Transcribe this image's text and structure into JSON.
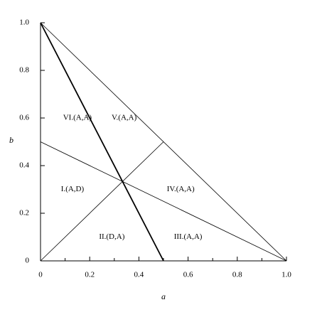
{
  "chart_data": {
    "type": "line",
    "xlabel": "a",
    "ylabel": "b",
    "xlim": [
      0,
      1
    ],
    "ylim": [
      0,
      1
    ],
    "xticks": [
      0,
      0.2,
      0.4,
      0.6,
      0.8,
      {
        "value": 1,
        "label": "1.0"
      }
    ],
    "minor_xticks": [
      0.1,
      0.3,
      0.5,
      0.7,
      0.9
    ],
    "yticks": [
      0,
      0.2,
      0.4,
      0.6,
      0.8,
      {
        "value": 1,
        "label": "1.0"
      }
    ],
    "series": [
      {
        "color": "#000000",
        "line_width": 0.8,
        "x": [
          0,
          1
        ],
        "values": [
          1,
          0
        ]
      },
      {
        "color": "#000000",
        "line_width": 1.8,
        "x": [
          0,
          0.5
        ],
        "values": [
          1,
          0
        ]
      },
      {
        "color": "#000000",
        "line_width": 0.8,
        "x": [
          0,
          1
        ],
        "values": [
          0.5,
          0
        ]
      },
      {
        "color": "#000000",
        "line_width": 0.8,
        "x": [
          0,
          0.5
        ],
        "values": [
          0,
          0.5
        ]
      }
    ],
    "annotations": [
      {
        "text": "VI.(A,A)",
        "x": 0.15,
        "y": 0.6
      },
      {
        "text": "V.(A,A)",
        "x": 0.34,
        "y": 0.6
      },
      {
        "text": "I.(A,D)",
        "x": 0.13,
        "y": 0.3
      },
      {
        "text": "IV.(A,A)",
        "x": 0.57,
        "y": 0.3
      },
      {
        "text": "II.(D,A)",
        "x": 0.29,
        "y": 0.1
      },
      {
        "text": "III.(A,A)",
        "x": 0.6,
        "y": 0.1
      }
    ]
  }
}
